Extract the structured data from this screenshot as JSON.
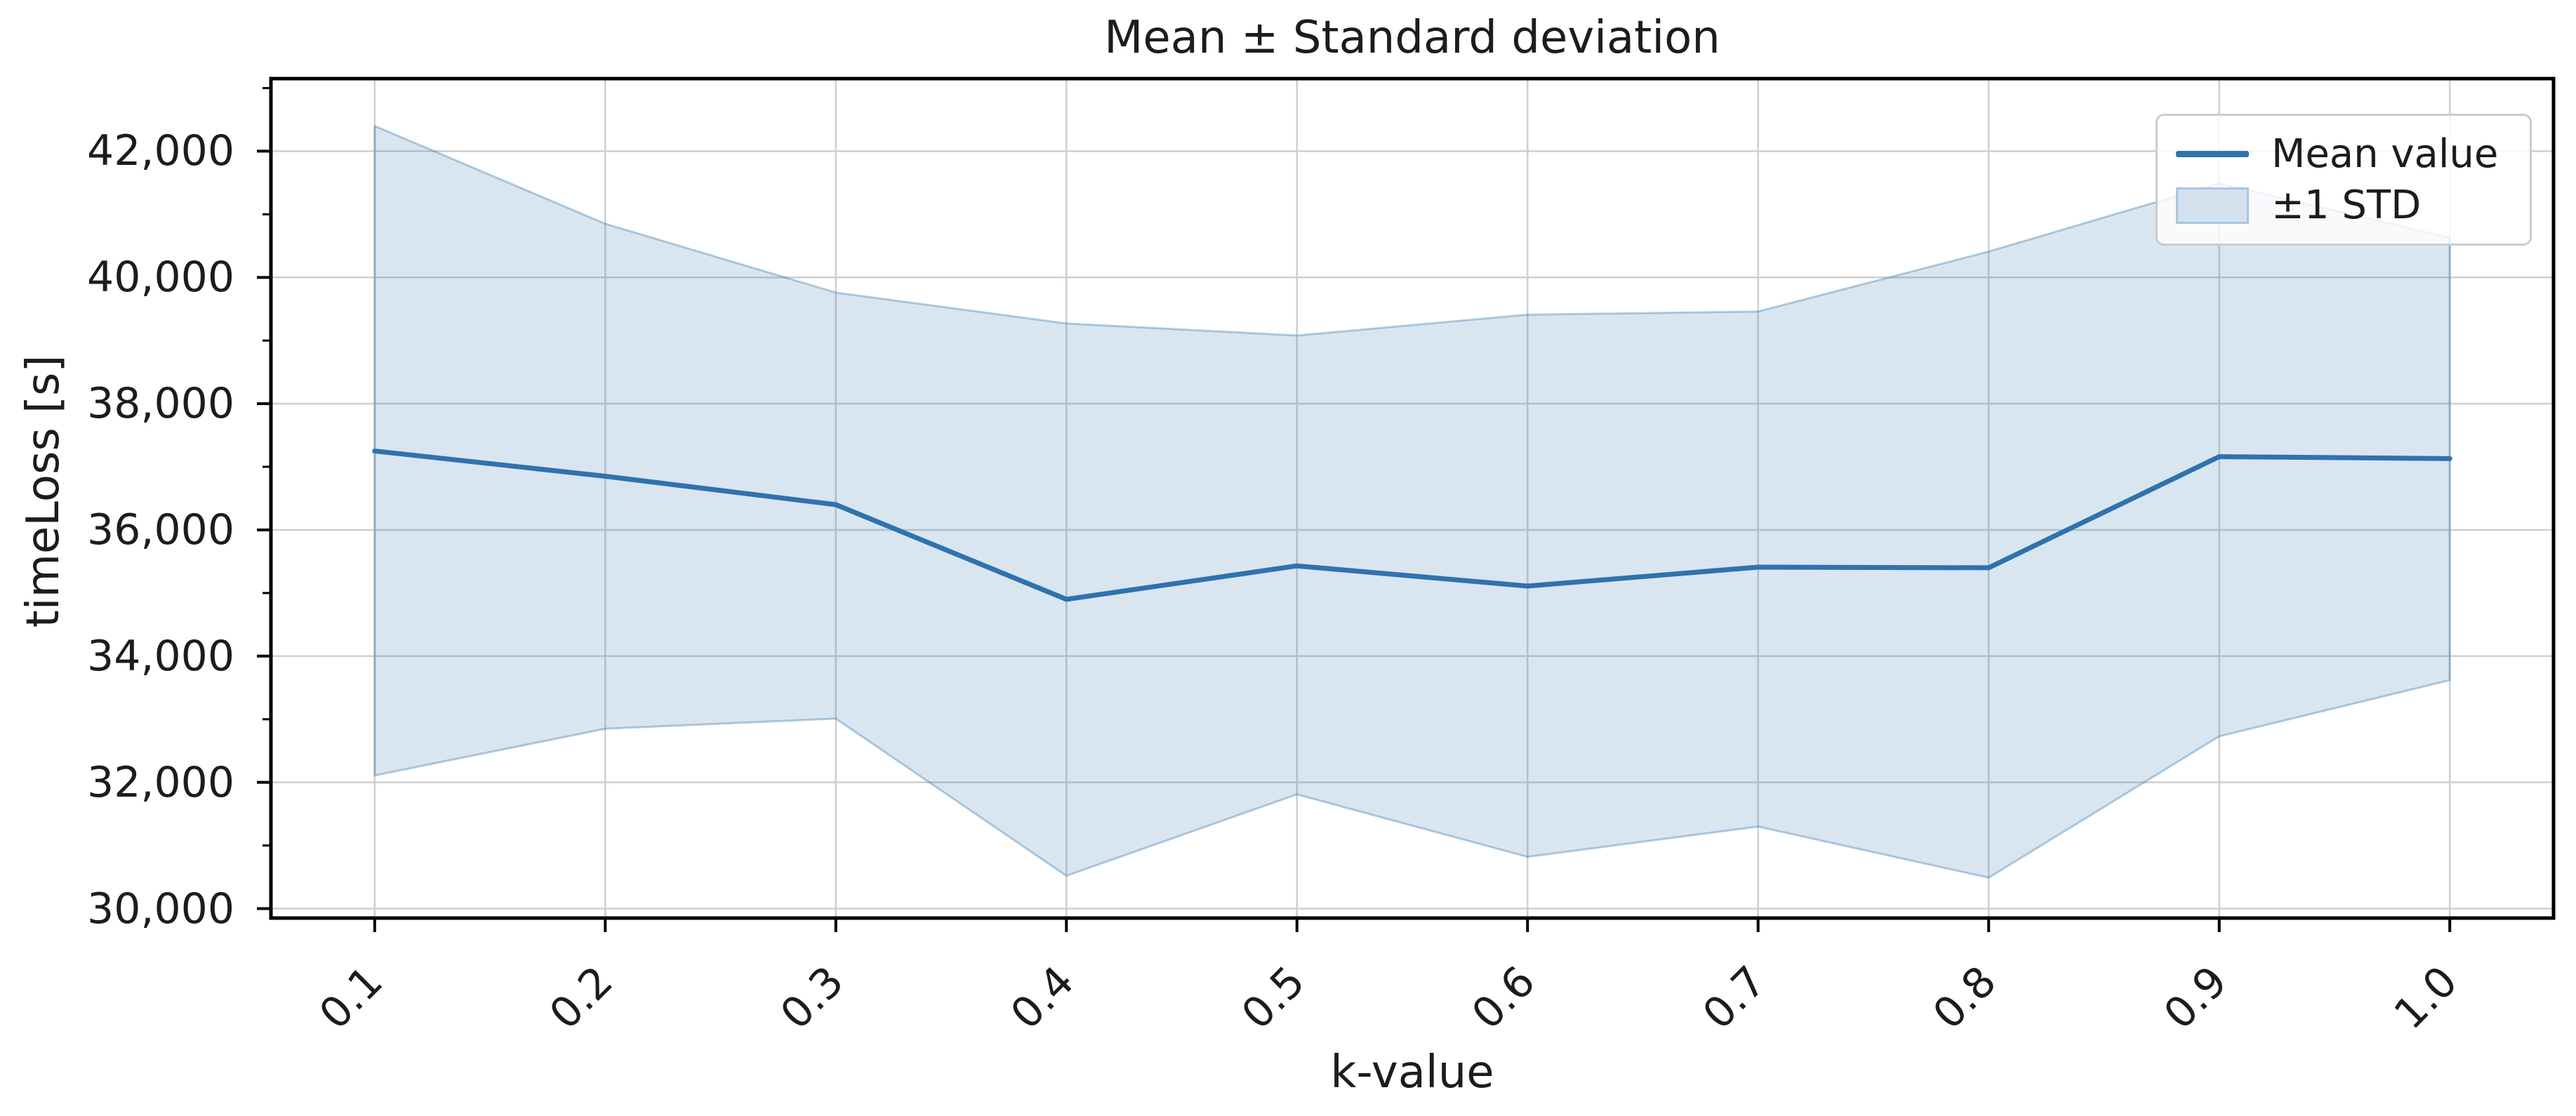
{
  "figure": {
    "title": "Mean ± Standard deviation",
    "background": "#ffffff",
    "colors": {
      "mean_line": "#2f72ae",
      "band_fill": "rgba(47,114,174,0.18)",
      "band_edge": "rgba(47,114,174,0.35)",
      "grid": "#cfcfcf",
      "spine": "#000000",
      "text": "#1c1c1c",
      "legend_border": "#cccccc",
      "legend_bg": "rgba(255,255,255,0.8)",
      "legend_patch_fill": "#d3e1ef",
      "legend_patch_border": "#a9c6de"
    },
    "legend": {
      "items": [
        {
          "label": "Mean value",
          "type": "line"
        },
        {
          "label": "±1 STD",
          "type": "patch"
        }
      ]
    }
  },
  "chart_data": {
    "type": "line",
    "title": "Mean ± Standard deviation",
    "xlabel": "k-value",
    "ylabel": "timeLoss [s]",
    "x": [
      0.1,
      0.2,
      0.3,
      0.4,
      0.5,
      0.6,
      0.7,
      0.8,
      0.9,
      1.0
    ],
    "x_tick_labels": [
      "0.1",
      "0.2",
      "0.3",
      "0.4",
      "0.5",
      "0.6",
      "0.7",
      "0.8",
      "0.9",
      "1.0"
    ],
    "y_tick_values": [
      30000,
      32000,
      34000,
      36000,
      38000,
      40000,
      42000
    ],
    "y_tick_labels": [
      "30,000",
      "32,000",
      "34,000",
      "36,000",
      "38,000",
      "40,000",
      "42,000"
    ],
    "y_minor_tick_values": [
      31000,
      33000,
      35000,
      37000,
      39000,
      41000,
      43000
    ],
    "xlim": [
      0.055,
      1.045
    ],
    "ylim": [
      29850,
      43150
    ],
    "grid": true,
    "legend_position": "upper right",
    "series": [
      {
        "name": "Mean value",
        "values": [
          37250,
          36850,
          36400,
          34900,
          35430,
          35110,
          35410,
          35400,
          37160,
          37130
        ]
      },
      {
        "name": "+1 STD (band upper)",
        "values": [
          42400,
          40850,
          39760,
          39270,
          39080,
          39410,
          39460,
          40410,
          41490,
          40630
        ]
      },
      {
        "name": "-1 STD (band lower)",
        "values": [
          32110,
          32850,
          33010,
          30520,
          31810,
          30820,
          31300,
          30490,
          32730,
          33620
        ]
      }
    ]
  }
}
